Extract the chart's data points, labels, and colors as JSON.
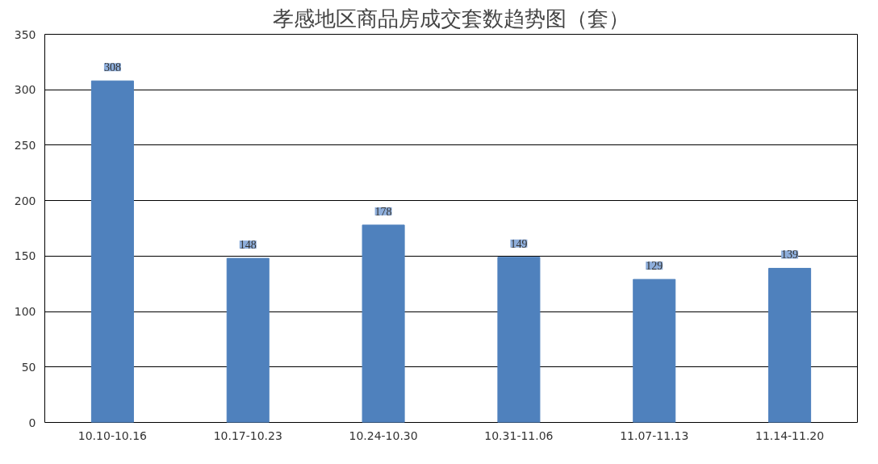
{
  "chart_data": {
    "type": "bar",
    "title": "孝感地区商品房成交套数趋势图（套）",
    "categories": [
      "10.10-10.16",
      "10.17-10.23",
      "10.24-10.30",
      "10.31-11.06",
      "11.07-11.13",
      "11.14-11.20"
    ],
    "values": [
      308,
      148,
      178,
      149,
      129,
      139
    ],
    "color": "#4f81bd",
    "ylim": [
      0,
      350
    ],
    "yticks": [
      0,
      50,
      100,
      150,
      200,
      250,
      300,
      350
    ],
    "grid": "y",
    "data_labels": true
  }
}
